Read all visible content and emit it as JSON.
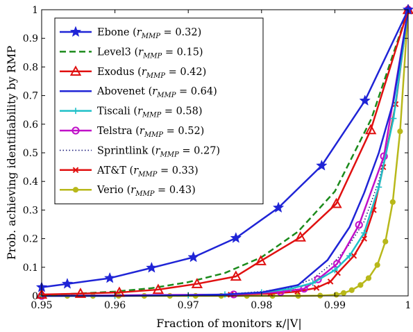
{
  "chart_data": {
    "type": "line",
    "title": "",
    "xlabel": "Fraction of monitors κ/|V|",
    "ylabel": "Prob. achieving identifiability by RMP",
    "xlim": [
      0.95,
      1.0
    ],
    "ylim": [
      0,
      1
    ],
    "x_ticks": [
      0.95,
      0.96,
      0.97,
      0.98,
      0.99,
      1
    ],
    "x_tick_labels": [
      "0.95",
      "0.96",
      "0.97",
      "0.98",
      "0.99",
      "1"
    ],
    "y_ticks": [
      0,
      0.1,
      0.2,
      0.3,
      0.4,
      0.5,
      0.6,
      0.7,
      0.8,
      0.9,
      1
    ],
    "y_tick_labels": [
      "0",
      "0.1",
      "0.2",
      "0.3",
      "0.4",
      "0.5",
      "0.6",
      "0.7",
      "0.8",
      "0.9",
      "1"
    ],
    "grid": false,
    "legend_position": "top-left",
    "series": [
      {
        "name": "Ebone",
        "r_value": "0.32",
        "color": "#1f24d6",
        "dash": "solid",
        "marker": "star",
        "x": [
          0.95,
          0.9535,
          0.9593,
          0.965,
          0.9707,
          0.9765,
          0.9823,
          0.9882,
          0.9941,
          1.0
        ],
        "y": [
          0.03,
          0.042,
          0.062,
          0.098,
          0.135,
          0.202,
          0.308,
          0.455,
          0.682,
          1.0
        ]
      },
      {
        "name": "Level3",
        "r_value": "0.15",
        "color": "#1b8a1b",
        "dash": "dashed",
        "marker": "none",
        "x": [
          0.95,
          0.955,
          0.96,
          0.965,
          0.97,
          0.975,
          0.98,
          0.985,
          0.99,
          0.995,
          1.0
        ],
        "y": [
          0.003,
          0.008,
          0.015,
          0.027,
          0.048,
          0.08,
          0.135,
          0.225,
          0.365,
          0.62,
          1.0
        ]
      },
      {
        "name": "Exodus",
        "r_value": "0.42",
        "color": "#e01010",
        "dash": "solid",
        "marker": "triangle",
        "x": [
          0.95,
          0.9553,
          0.9606,
          0.9659,
          0.9712,
          0.9765,
          0.9799,
          0.9853,
          0.9902,
          0.9949,
          1.0
        ],
        "y": [
          0.005,
          0.008,
          0.012,
          0.022,
          0.042,
          0.068,
          0.122,
          0.205,
          0.322,
          0.58,
          1.0
        ]
      },
      {
        "name": "Abovenet",
        "r_value": "0.64",
        "color": "#1f24d6",
        "dash": "solid",
        "marker": "none",
        "x": [
          0.95,
          0.96,
          0.97,
          0.975,
          0.98,
          0.985,
          0.989,
          0.992,
          0.994,
          0.996,
          0.998,
          1.0
        ],
        "y": [
          0.0,
          0.0,
          0.002,
          0.005,
          0.012,
          0.038,
          0.125,
          0.24,
          0.36,
          0.5,
          0.68,
          1.0
        ]
      },
      {
        "name": "Tiscali",
        "r_value": "0.58",
        "color": "#1ec0c8",
        "dash": "solid",
        "marker": "plus",
        "x": [
          0.95,
          0.96,
          0.97,
          0.975,
          0.98,
          0.984,
          0.987,
          0.99,
          0.992,
          0.994,
          0.996,
          0.998,
          1.0
        ],
        "y": [
          0.0,
          0.0,
          0.002,
          0.005,
          0.012,
          0.025,
          0.045,
          0.09,
          0.14,
          0.22,
          0.38,
          0.62,
          1.0
        ]
      },
      {
        "name": "Telstra",
        "r_value": "0.52",
        "color": "#c010c8",
        "dash": "solid",
        "marker": "circle",
        "x": [
          0.95,
          0.9762,
          0.9826,
          0.9858,
          0.9877,
          0.9903,
          0.9933,
          0.9967,
          1.0
        ],
        "y": [
          0.0,
          0.005,
          0.014,
          0.025,
          0.058,
          0.112,
          0.248,
          0.488,
          1.0
        ]
      },
      {
        "name": "Sprintlink",
        "r_value": "0.27",
        "color": "#1a1a7a",
        "dash": "dotted",
        "marker": "none",
        "x": [
          0.95,
          0.96,
          0.97,
          0.975,
          0.98,
          0.984,
          0.987,
          0.99,
          0.992,
          0.994,
          0.996,
          0.998,
          1.0
        ],
        "y": [
          0.0,
          0.0,
          0.002,
          0.006,
          0.015,
          0.03,
          0.06,
          0.12,
          0.18,
          0.26,
          0.4,
          0.62,
          1.0
        ]
      },
      {
        "name": "AT&T",
        "r_value": "0.33",
        "color": "#e01010",
        "dash": "solid",
        "marker": "x",
        "x": [
          0.95,
          0.9758,
          0.9812,
          0.9849,
          0.9875,
          0.9894,
          0.9904,
          0.9926,
          0.994,
          0.9953,
          0.9966,
          0.9983,
          1.0
        ],
        "y": [
          0.0,
          0.004,
          0.008,
          0.015,
          0.028,
          0.05,
          0.08,
          0.14,
          0.2,
          0.3,
          0.45,
          0.67,
          1.0
        ]
      },
      {
        "name": "Verio",
        "r_value": "0.43",
        "color": "#b8b81a",
        "dash": "solid",
        "marker": "dot",
        "x": [
          0.95,
          0.9535,
          0.957,
          0.9605,
          0.964,
          0.9675,
          0.971,
          0.9745,
          0.978,
          0.9815,
          0.985,
          0.988,
          0.9902,
          0.9912,
          0.9923,
          0.9935,
          0.9946,
          0.9958,
          0.9969,
          0.9979,
          0.9989,
          1.0
        ],
        "y": [
          0.0,
          0.0,
          0.0,
          0.0,
          0.0,
          0.0,
          0.0,
          0.0,
          0.0,
          0.0,
          0.0,
          0.001,
          0.004,
          0.01,
          0.02,
          0.038,
          0.062,
          0.108,
          0.19,
          0.328,
          0.575,
          1.0
        ]
      }
    ]
  }
}
